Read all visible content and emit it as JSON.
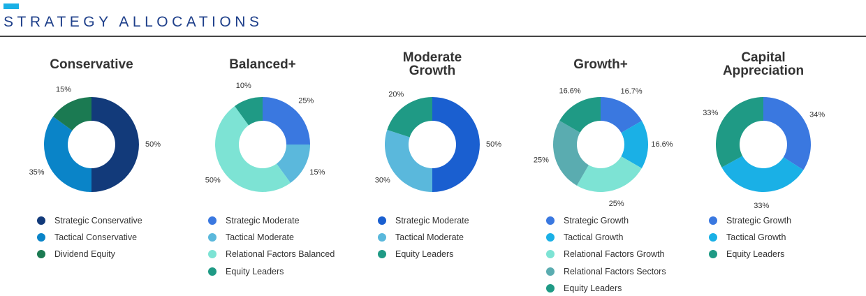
{
  "header": {
    "title": "STRATEGY ALLOCATIONS"
  },
  "chart_data": [
    {
      "type": "pie",
      "title": "Conservative",
      "categories": [
        "Strategic Conservative",
        "Tactical Conservative",
        "Dividend Equity"
      ],
      "values": [
        50,
        35,
        15
      ],
      "value_labels": [
        "50%",
        "35%",
        "15%"
      ],
      "colors": [
        "#123a7a",
        "#0a84c8",
        "#1b7a52"
      ]
    },
    {
      "type": "pie",
      "title": "Balanced+",
      "categories": [
        "Strategic Moderate",
        "Tactical Moderate",
        "Relational Factors Balanced",
        "Equity Leaders"
      ],
      "values": [
        25,
        15,
        50,
        10
      ],
      "value_labels": [
        "25%",
        "15%",
        "50%",
        "10%"
      ],
      "colors": [
        "#3a78e0",
        "#5bb8dc",
        "#7de3d4",
        "#1f9a85"
      ]
    },
    {
      "type": "pie",
      "title": "Moderate Growth",
      "categories": [
        "Strategic Moderate",
        "Tactical Moderate",
        "Equity Leaders"
      ],
      "values": [
        50,
        30,
        20
      ],
      "value_labels": [
        "50%",
        "30%",
        "20%"
      ],
      "colors": [
        "#1a5fd0",
        "#5ab8dc",
        "#1f9a85"
      ]
    },
    {
      "type": "pie",
      "title": "Growth+",
      "categories": [
        "Strategic Growth",
        "Tactical Growth",
        "Relational Factors Growth",
        "Relational Factors Sectors",
        "Equity Leaders"
      ],
      "values": [
        16.7,
        16.6,
        25,
        25,
        16.6
      ],
      "value_labels": [
        "16.7%",
        "16.6%",
        "25%",
        "25%",
        "16.6%"
      ],
      "colors": [
        "#3a78e0",
        "#1ab0e6",
        "#7de3d4",
        "#5aacb0",
        "#1f9a85"
      ]
    },
    {
      "type": "pie",
      "title": "Capital Appreciation",
      "categories": [
        "Strategic Growth",
        "Tactical Growth",
        "Equity Leaders"
      ],
      "values": [
        34,
        33,
        33
      ],
      "value_labels": [
        "34%",
        "33%",
        "33%"
      ],
      "colors": [
        "#3a78e0",
        "#1ab0e6",
        "#1f9a85"
      ]
    }
  ]
}
